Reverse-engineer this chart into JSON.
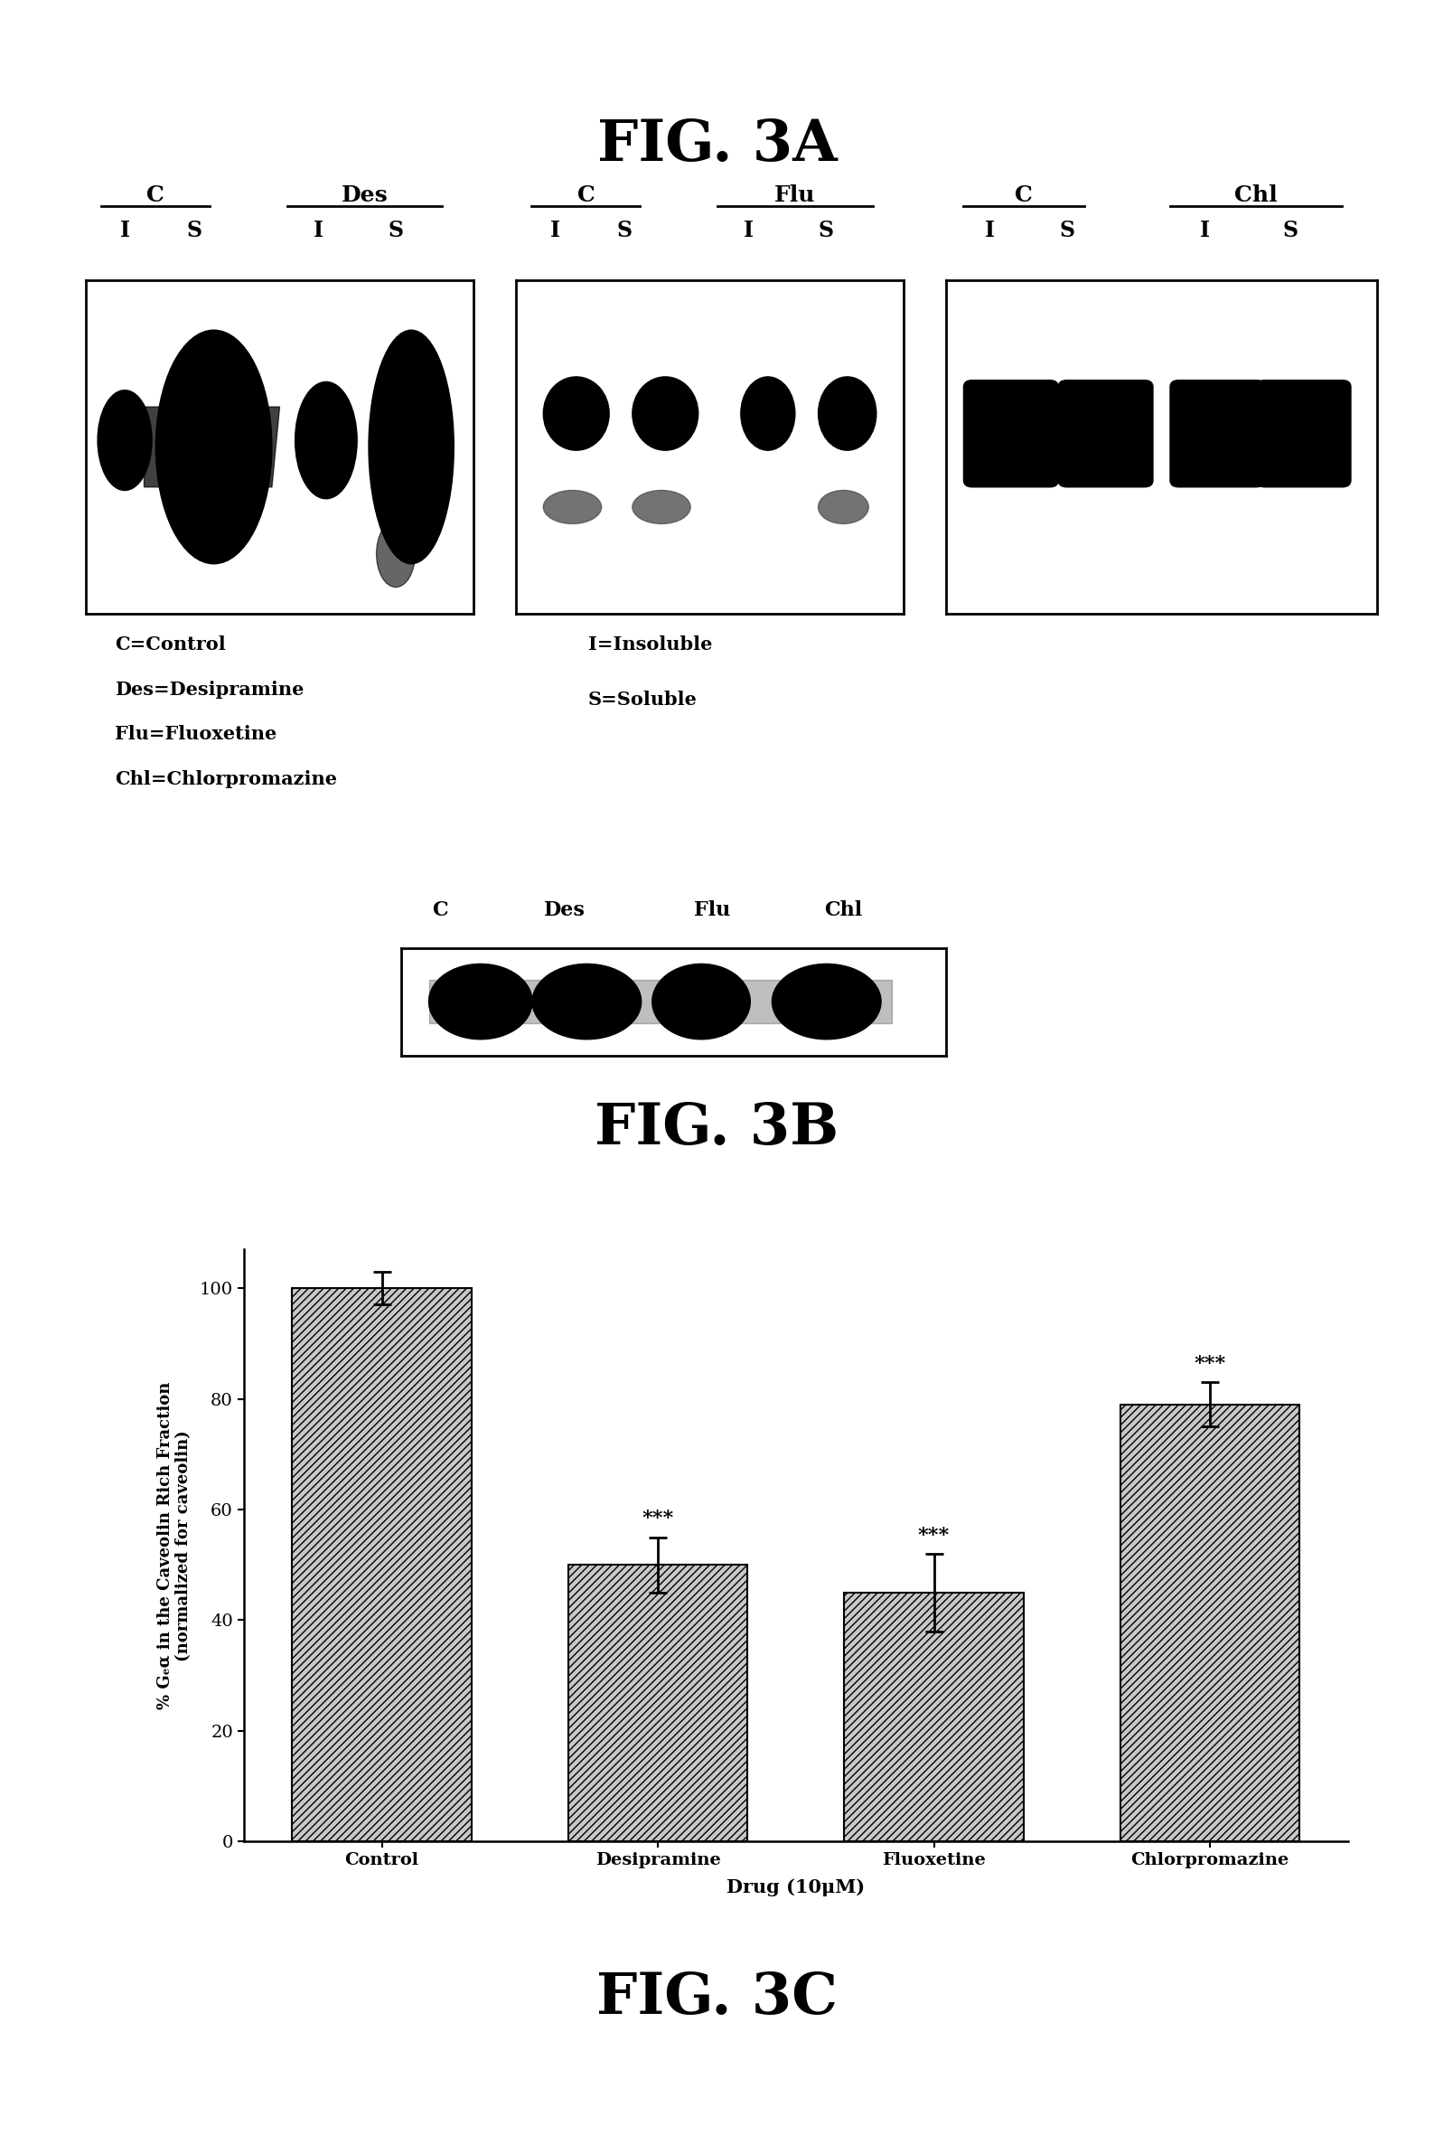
{
  "fig3a_title": "FIG. 3A",
  "fig3b_title": "FIG. 3B",
  "fig3c_title": "FIG. 3C",
  "panel3a_groups": [
    {
      "top1": "C",
      "top2": "Des"
    },
    {
      "top1": "C",
      "top2": "Flu"
    },
    {
      "top1": "C",
      "top2": "Chl"
    }
  ],
  "panel3a_lanes": [
    "I",
    "S",
    "I",
    "S"
  ],
  "panel3a_legend_left": [
    "C=Control",
    "Des=Desipramine",
    "Flu=Fluoxetine",
    "Chl=Chlorpromazine"
  ],
  "panel3a_legend_right": [
    "I=Insoluble",
    "S=Soluble"
  ],
  "panel3b_labels": [
    "C",
    "Des",
    "Flu",
    "Chl"
  ],
  "bar_categories": [
    "Control",
    "Desipramine",
    "Fluoxetine",
    "Chlorpromazine"
  ],
  "bar_values": [
    100,
    50,
    45,
    79
  ],
  "bar_errors": [
    3,
    5,
    7,
    4
  ],
  "bar_xlabel": "Drug (10μM)",
  "bar_ylabel": "% Gₑα in the Caveolin Rich Fraction\n(normalized for caveolin)",
  "bar_ylim": [
    0,
    107
  ],
  "bar_yticks": [
    0,
    20,
    40,
    60,
    80,
    100
  ],
  "bar_yticklabels": [
    "0",
    "20",
    "40",
    "60",
    "80",
    "100"
  ],
  "bar_significance": [
    "",
    "***",
    "***",
    "***"
  ],
  "bar_hatch": "////",
  "bar_facecolor": "#c8c8c8",
  "background": "#ffffff",
  "black": "#000000"
}
